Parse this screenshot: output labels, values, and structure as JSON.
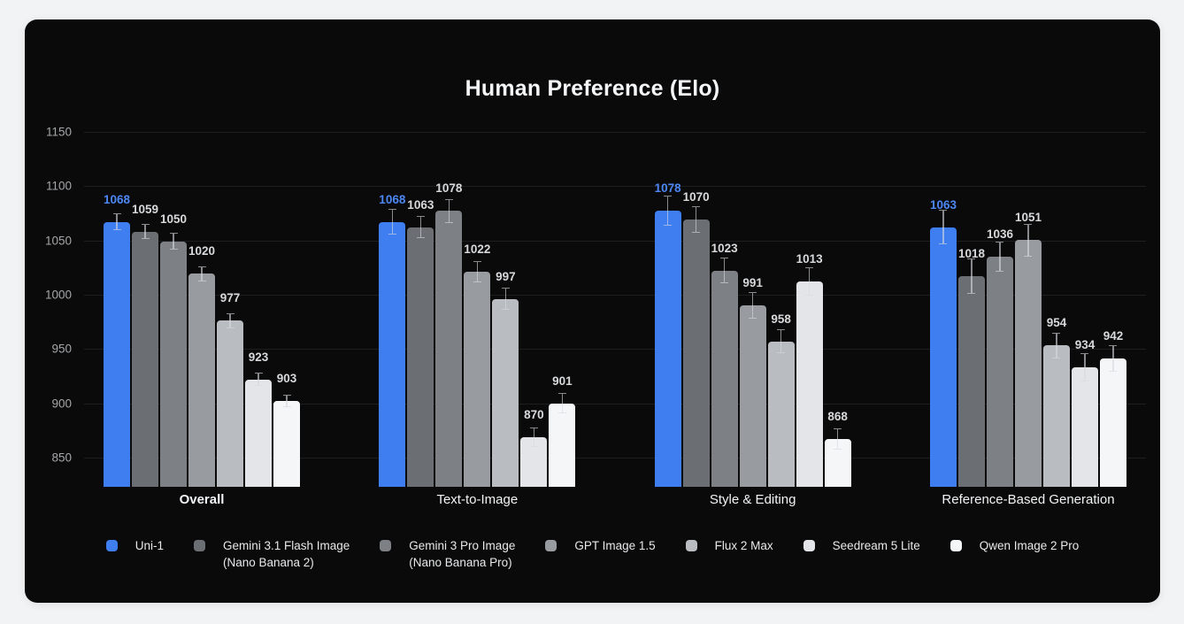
{
  "page": {
    "background": "#f2f3f4",
    "card_background": "#0a0a0b"
  },
  "chart_data": {
    "type": "bar",
    "title": "Human Preference (Elo)",
    "xlabel": "",
    "ylabel": "",
    "yticks": [
      850,
      900,
      950,
      1000,
      1050,
      1100,
      1150
    ],
    "ylim": [
      824,
      1158
    ],
    "grid": "horizontal",
    "legend_position": "bottom",
    "error_bars": true,
    "categories": [
      {
        "label": "Overall",
        "bold": true
      },
      {
        "label": "Text-to-Image",
        "bold": false
      },
      {
        "label": "Style & Editing",
        "bold": false
      },
      {
        "label": "Reference-Based Generation",
        "bold": false
      }
    ],
    "series": [
      {
        "name": "Uni-1",
        "legend_lines": [
          "Uni-1"
        ],
        "color": "#3e7ef1",
        "label_color": "#4d87f2",
        "values": [
          1068,
          1068,
          1078,
          1063
        ],
        "errors": [
          8,
          12,
          14,
          16
        ]
      },
      {
        "name": "Gemini 3.1 Flash Image (Nano Banana 2)",
        "legend_lines": [
          "Gemini 3.1 Flash Image",
          "(Nano Banana 2)"
        ],
        "color": "#6b6e72",
        "label_color": "#d8d9db",
        "values": [
          1059,
          1063,
          1070,
          1018
        ],
        "errors": [
          7,
          10,
          12,
          16
        ]
      },
      {
        "name": "Gemini 3 Pro Image (Nano Banana Pro)",
        "legend_lines": [
          "Gemini 3 Pro Image",
          "(Nano Banana Pro)"
        ],
        "color": "#7d8084",
        "label_color": "#d8d9db",
        "values": [
          1050,
          1078,
          1023,
          1036
        ],
        "errors": [
          8,
          11,
          12,
          14
        ]
      },
      {
        "name": "GPT Image 1.5",
        "legend_lines": [
          "GPT Image 1.5"
        ],
        "color": "#989ca1",
        "label_color": "#d8d9db",
        "values": [
          1020,
          1022,
          991,
          1051
        ],
        "errors": [
          7,
          10,
          12,
          15
        ]
      },
      {
        "name": "Flux 2 Max",
        "legend_lines": [
          "Flux 2 Max"
        ],
        "color": "#b9bdc2",
        "label_color": "#d8d9db",
        "values": [
          977,
          997,
          958,
          954
        ],
        "errors": [
          7,
          10,
          11,
          12
        ]
      },
      {
        "name": "Seedream 5 Lite",
        "legend_lines": [
          "Seedream 5 Lite"
        ],
        "color": "#e3e5e8",
        "label_color": "#d8d9db",
        "values": [
          923,
          870,
          1013,
          934
        ],
        "errors": [
          6,
          9,
          13,
          13
        ]
      },
      {
        "name": "Qwen Image 2 Pro",
        "legend_lines": [
          "Qwen Image 2 Pro"
        ],
        "color": "#f5f6f7",
        "label_color": "#d8d9db",
        "values": [
          903,
          901,
          868,
          942
        ],
        "errors": [
          6,
          9,
          10,
          12
        ]
      }
    ]
  }
}
